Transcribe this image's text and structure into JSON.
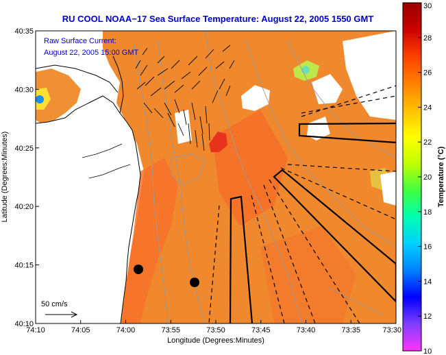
{
  "title": "RU COOL  NOAA−17  Sea Surface Temperature:  August 22, 2005 1550 GMT",
  "annotation": {
    "line1": "Raw Surface Current:",
    "line2": "August 22, 2005 15:00 GMT"
  },
  "scale_label": "50 cm/s",
  "colorbar": {
    "label": "Temperature (°C)",
    "min": 10,
    "max": 30,
    "ticks": [
      "10",
      "12",
      "14",
      "16",
      "18",
      "20",
      "22",
      "24",
      "26",
      "28",
      "30"
    ],
    "colors": [
      "#ff33ff",
      "#7f3fff",
      "#0000ff",
      "#0080ff",
      "#00d0ff",
      "#00ffb0",
      "#40ff40",
      "#c0ff00",
      "#ffff00",
      "#ffc000",
      "#ff8000",
      "#ff4000",
      "#cc0000",
      "#990000"
    ]
  },
  "axes": {
    "xlabel": "Longitude (Degrees:Minutes)",
    "ylabel": "Latitude (Degrees:Minutes)",
    "xticks": [
      "74:10",
      "74:05",
      "74:00",
      "73:55",
      "73:50",
      "73:45",
      "73:40",
      "73:35",
      "73:30"
    ],
    "yticks": [
      "40:35",
      "40:30",
      "40:25",
      "40:20",
      "40:15",
      "40:10"
    ]
  },
  "colors": {
    "sst_base": "#f08a30",
    "sst_warm": "#ff7020",
    "sst_hot": "#e83020",
    "land": "#ffffff",
    "contour": "#9a9a9a",
    "title": "#0000cc"
  }
}
